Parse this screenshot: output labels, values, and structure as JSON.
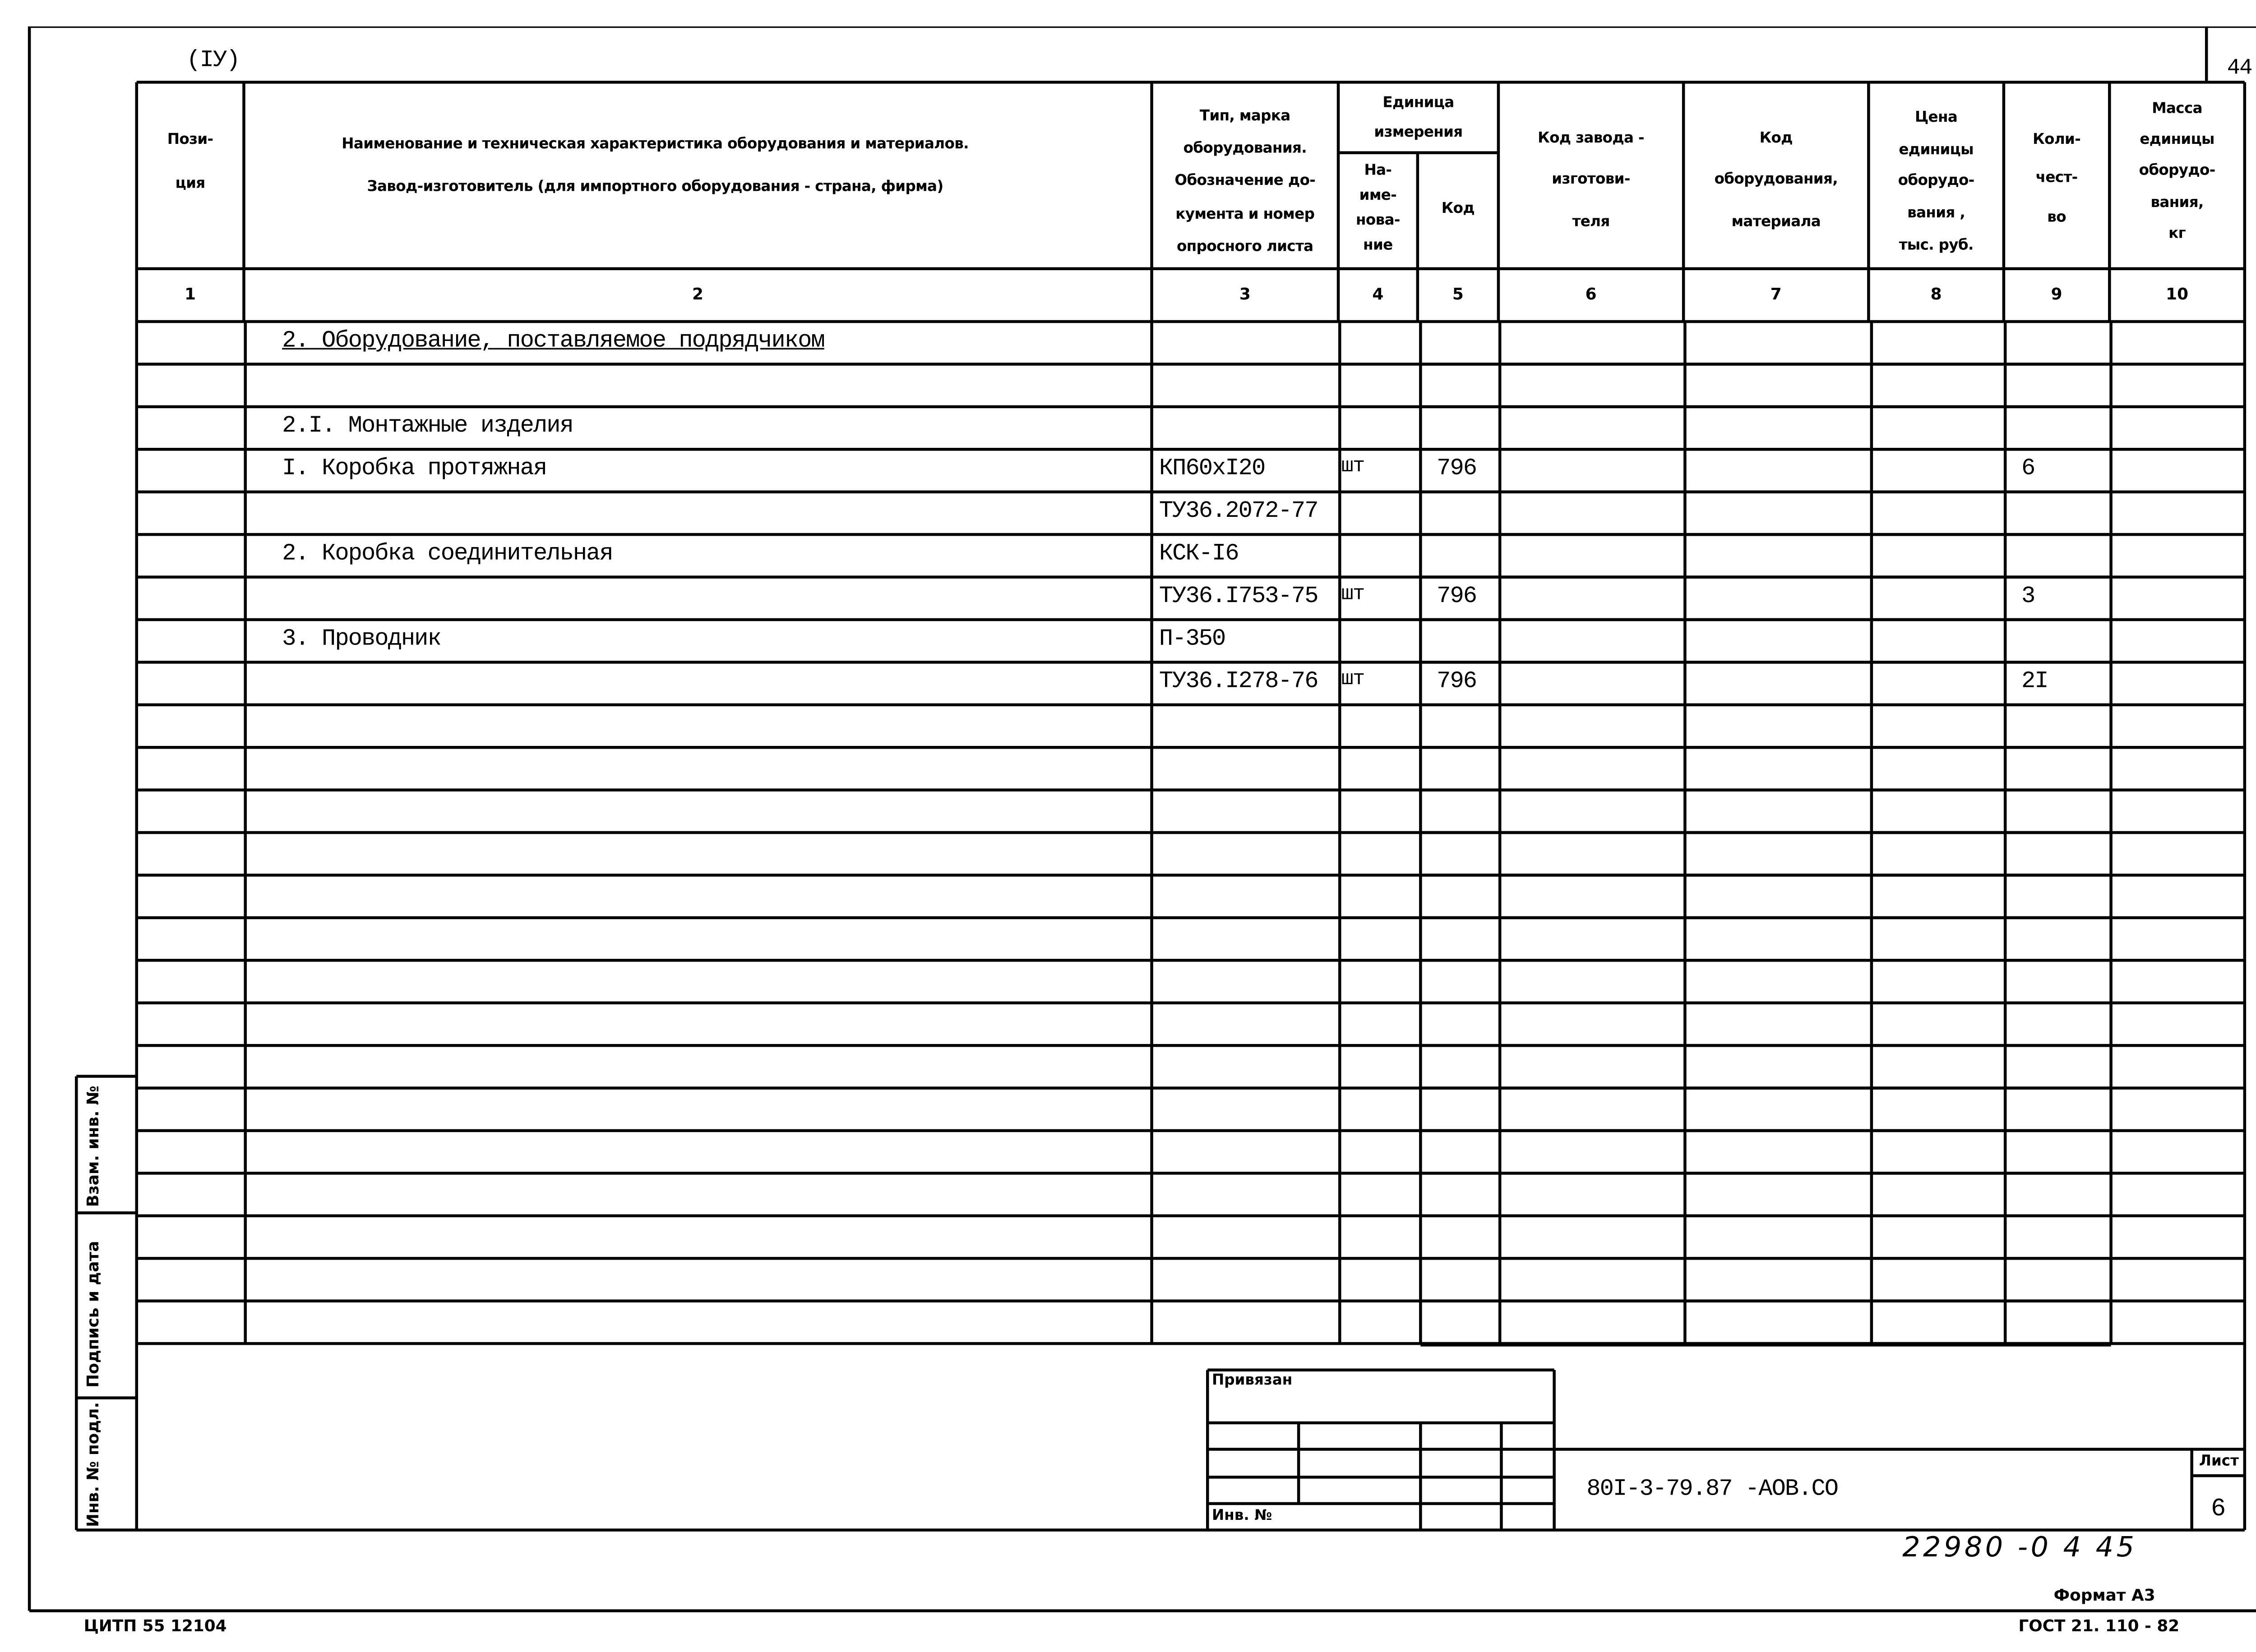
{
  "sheet_marker": "(IУ)",
  "page_number_top": "44",
  "header": {
    "col1": [
      "Пози-",
      "ция"
    ],
    "col2": [
      "Наименование и техническая характеристика  оборудования и материалов.",
      "Завод-изготовитель  (для импортного оборудования -  страна, фирма)"
    ],
    "col3": [
      "Тип,      марка",
      "оборудования.",
      "Обозначение  до-",
      "кумента  и  номер",
      "опросного  листа"
    ],
    "col4_group": [
      "Единица",
      "измерения"
    ],
    "col4": [
      "На-",
      "име-",
      "нова-",
      "ние"
    ],
    "col5": [
      "Код"
    ],
    "col6": [
      "Код  завода -",
      "изготови-",
      "теля"
    ],
    "col7": [
      "Код",
      "оборудования,",
      "материала"
    ],
    "col8": [
      "Цена",
      "единицы",
      "оборудо-",
      "вания ,",
      "тыс. руб."
    ],
    "col9": [
      "Коли-",
      "чест-",
      "во"
    ],
    "col10": [
      "Масса",
      "единицы",
      "оборудо-",
      "вания,",
      "кг"
    ],
    "numbers": [
      "1",
      "2",
      "3",
      "4",
      "5",
      "6",
      "7",
      "8",
      "9",
      "10"
    ]
  },
  "rows": [
    {
      "name": "2. Оборудование, поставляемое подрядчиком",
      "underline": true,
      "type": "",
      "unit": "",
      "code": "",
      "qty": ""
    },
    {
      "name": "",
      "type": "",
      "unit": "",
      "code": "",
      "qty": ""
    },
    {
      "name": "2.I. Монтажные изделия",
      "type": "",
      "unit": "",
      "code": "",
      "qty": ""
    },
    {
      "name": "I. Коробка протяжная",
      "type": "КП60хI20",
      "unit": "шт",
      "code": "796",
      "qty": "6"
    },
    {
      "name": "",
      "type": "ТУ36.2072-77",
      "unit": "",
      "code": "",
      "qty": ""
    },
    {
      "name": "2. Коробка соединительная",
      "type": "КСК-I6",
      "unit": "",
      "code": "",
      "qty": ""
    },
    {
      "name": "",
      "type": "ТУ36.I753-75",
      "unit": "шт",
      "code": "796",
      "qty": "3"
    },
    {
      "name": "3. Проводник",
      "type": "П-350",
      "unit": "",
      "code": "",
      "qty": ""
    },
    {
      "name": "",
      "type": "ТУ36.I278-76",
      "unit": "шт",
      "code": "796",
      "qty": "2I"
    }
  ],
  "side_labels": [
    "Взам. инв. №",
    "Подпись и дата",
    "Инв. № подл."
  ],
  "stamp": {
    "privyazan": "Привязан",
    "inv_no": "Инв. №",
    "designation": "80I-3-79.87 -АОВ.СО",
    "sheet_label": "Лист",
    "sheet_number": "6"
  },
  "handwritten": "22980 -0 4     45",
  "footer": {
    "format": "Формат А3",
    "left": "ЦИТП  55 12104",
    "right": "ГОСТ  21. 110 - 82"
  }
}
